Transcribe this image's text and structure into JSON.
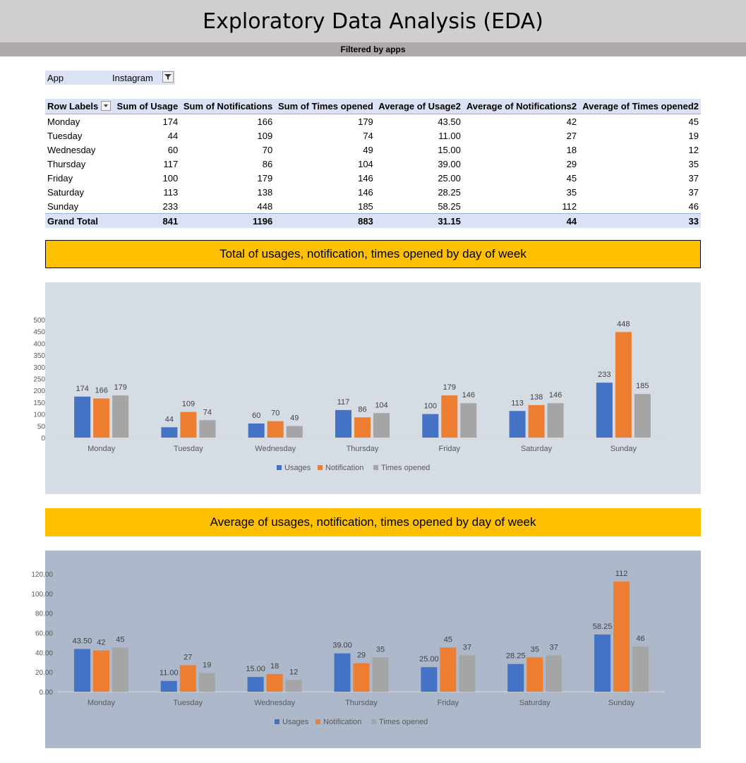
{
  "page": {
    "title": "Exploratory Data Analysis (EDA)",
    "subtitle": "Filtered by apps"
  },
  "filter": {
    "label": "App",
    "value": "Instagram",
    "icon": "filter-icon"
  },
  "pivot": {
    "headers": [
      "Row Labels",
      "Sum of Usage",
      "Sum of Notifications",
      "Sum of Times opened",
      "Average of Usage2",
      "Average of Notifications2",
      "Average of Times opened2"
    ],
    "rows": [
      [
        "Monday",
        "174",
        "166",
        "179",
        "43.50",
        "42",
        "45"
      ],
      [
        "Tuesday",
        "44",
        "109",
        "74",
        "11.00",
        "27",
        "19"
      ],
      [
        "Wednesday",
        "60",
        "70",
        "49",
        "15.00",
        "18",
        "12"
      ],
      [
        "Thursday",
        "117",
        "86",
        "104",
        "39.00",
        "29",
        "35"
      ],
      [
        "Friday",
        "100",
        "179",
        "146",
        "25.00",
        "45",
        "37"
      ],
      [
        "Saturday",
        "113",
        "138",
        "146",
        "28.25",
        "35",
        "37"
      ],
      [
        "Sunday",
        "233",
        "448",
        "185",
        "58.25",
        "112",
        "46"
      ]
    ],
    "total": [
      "Grand Total",
      "841",
      "1196",
      "883",
      "31.15",
      "44",
      "33"
    ]
  },
  "colors": {
    "usages": "#4472c4",
    "notification": "#ed7d31",
    "times_opened": "#a5a5a5"
  },
  "chart_data": [
    {
      "type": "bar",
      "title": "Total of usages, notification, times opened by day of week",
      "categories": [
        "Monday",
        "Tuesday",
        "Wednesday",
        "Thursday",
        "Friday",
        "Saturday",
        "Sunday"
      ],
      "series": [
        {
          "name": "Usages",
          "values": [
            174,
            44,
            60,
            117,
            100,
            113,
            233
          ],
          "labels": [
            "174",
            "44",
            "60",
            "117",
            "100",
            "113",
            "233"
          ]
        },
        {
          "name": "Notification",
          "values": [
            166,
            109,
            70,
            86,
            179,
            138,
            448
          ],
          "labels": [
            "166",
            "109",
            "70",
            "86",
            "179",
            "138",
            "448"
          ]
        },
        {
          "name": "Times opened",
          "values": [
            179,
            74,
            49,
            104,
            146,
            146,
            185
          ],
          "labels": [
            "179",
            "74",
            "49",
            "104",
            "146",
            "146",
            "185"
          ]
        }
      ],
      "ylim": [
        0,
        500
      ],
      "yticks": [
        "0",
        "50",
        "100",
        "150",
        "200",
        "250",
        "300",
        "350",
        "400",
        "450",
        "500"
      ],
      "legend": "bottom",
      "grid": false
    },
    {
      "type": "bar",
      "title": "Average  of usages, notification, times opened by day of week",
      "categories": [
        "Monday",
        "Tuesday",
        "Wednesday",
        "Thursday",
        "Friday",
        "Saturday",
        "Sunday"
      ],
      "series": [
        {
          "name": "Usages",
          "values": [
            43.5,
            11,
            15,
            39,
            25,
            28.25,
            58.25
          ],
          "labels": [
            "43.50",
            "11.00",
            "15.00",
            "39.00",
            "25.00",
            "28.25",
            "58.25"
          ]
        },
        {
          "name": "Notification",
          "values": [
            42,
            27,
            18,
            29,
            45,
            35,
            112
          ],
          "labels": [
            "42",
            "27",
            "18",
            "29",
            "45",
            "35",
            "112"
          ]
        },
        {
          "name": "Times opened",
          "values": [
            45,
            19,
            12,
            35,
            37,
            37,
            46
          ],
          "labels": [
            "45",
            "19",
            "12",
            "35",
            "37",
            "37",
            "46"
          ]
        }
      ],
      "ylim": [
        0,
        120
      ],
      "yticks": [
        "0.00",
        "20.00",
        "40.00",
        "60.00",
        "80.00",
        "100.00",
        "120.00"
      ],
      "legend": "bottom",
      "grid": false
    }
  ]
}
